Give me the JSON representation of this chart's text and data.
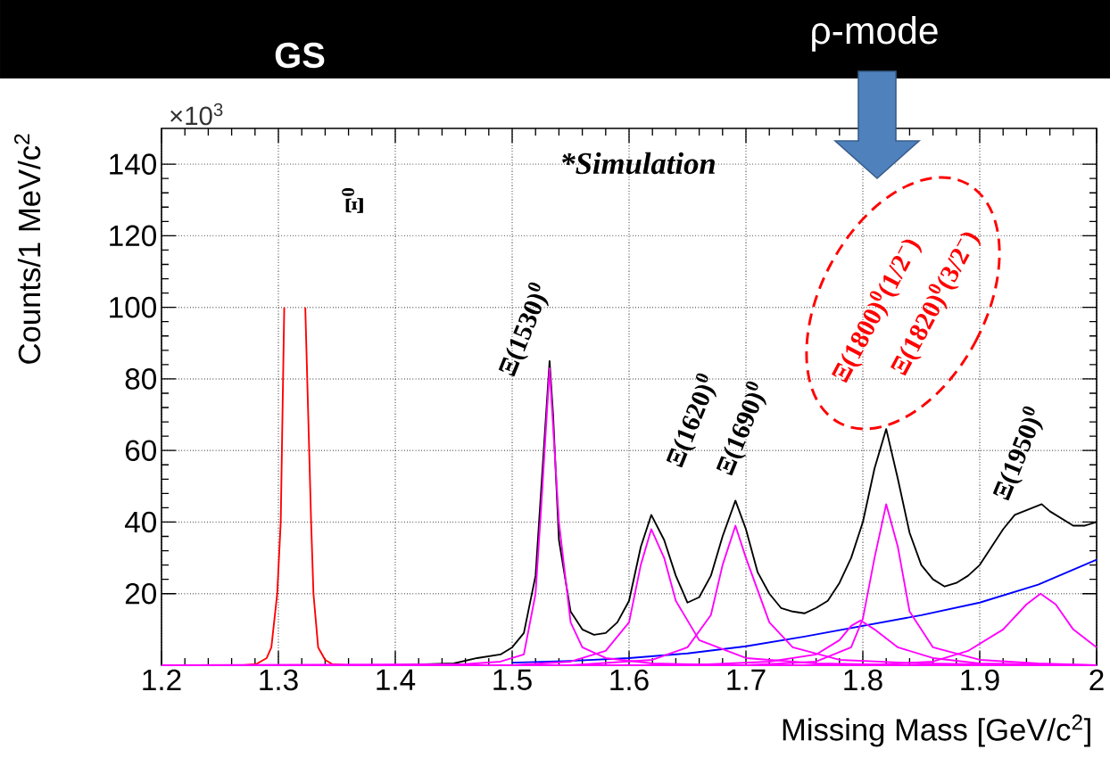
{
  "chart_data": {
    "type": "line",
    "xlabel": "Missing Mass [GeV/c$^{2}$]",
    "ylabel": "Counts/1 MeV/c$^{2}$",
    "xlim": [
      1.2,
      2.0
    ],
    "ylim": [
      0,
      150
    ],
    "xticks": [
      1.2,
      1.3,
      1.4,
      1.5,
      1.6,
      1.7,
      1.8,
      1.9,
      2
    ],
    "yticks": [
      20,
      40,
      60,
      80,
      100,
      120,
      140
    ],
    "grid": true,
    "series": [
      {
        "color": "#ff0000",
        "x": [
          1.2,
          1.27,
          1.281,
          1.29,
          1.294,
          1.299,
          1.302,
          1.305,
          1.308,
          1.321,
          1.323,
          1.328,
          1.33,
          1.334,
          1.34,
          1.346,
          1.36,
          1.4
        ],
        "values": [
          0,
          0,
          0.3,
          2,
          5,
          20,
          40,
          100,
          null,
          null,
          100,
          40,
          20,
          5,
          1.5,
          0.3,
          0,
          0
        ]
      },
      {
        "color": "#000000",
        "x": [
          1.2,
          1.4,
          1.45,
          1.47,
          1.49,
          1.5,
          1.51,
          1.52,
          1.525,
          1.532,
          1.535,
          1.54,
          1.55,
          1.56,
          1.57,
          1.58,
          1.59,
          1.6,
          1.61,
          1.619,
          1.63,
          1.64,
          1.65,
          1.66,
          1.67,
          1.68,
          1.691,
          1.7,
          1.71,
          1.72,
          1.73,
          1.74,
          1.75,
          1.76,
          1.77,
          1.78,
          1.79,
          1.8,
          1.81,
          1.82,
          1.83,
          1.84,
          1.85,
          1.86,
          1.87,
          1.88,
          1.89,
          1.9,
          1.91,
          1.92,
          1.93,
          1.953,
          1.96,
          1.97,
          1.98,
          1.99,
          2.0
        ],
        "values": [
          0,
          0,
          0.5,
          2,
          3,
          5,
          9,
          25,
          50,
          85,
          70,
          35,
          15,
          10,
          8.5,
          9,
          12,
          18,
          33,
          42,
          35,
          25,
          17.5,
          19,
          25,
          36,
          46,
          38,
          26,
          20,
          16,
          15,
          14.5,
          16,
          18,
          23,
          30,
          40,
          55,
          66,
          52,
          37,
          28,
          24,
          22,
          23,
          25,
          28,
          33,
          38,
          42,
          45,
          43,
          41,
          39,
          39,
          40
        ]
      },
      {
        "color": "#0000ff",
        "x": [
          1.2,
          1.4,
          1.45,
          1.5,
          1.55,
          1.6,
          1.65,
          1.7,
          1.75,
          1.8,
          1.85,
          1.9,
          1.95,
          2.0
        ],
        "values": [
          0,
          0,
          null,
          0.7,
          1.2,
          2,
          3.3,
          5.3,
          8,
          11,
          14,
          17.5,
          22.5,
          29.5
        ]
      },
      {
        "color": "#ff00ff",
        "x": [
          1.2,
          1.46,
          1.49,
          1.51,
          1.52,
          1.525,
          1.532,
          1.54,
          1.55,
          1.56,
          1.58,
          1.62,
          1.7,
          2.0
        ],
        "values": [
          0,
          0.3,
          1,
          3,
          20,
          45,
          83,
          40,
          12,
          5,
          2,
          0.5,
          0,
          0
        ]
      },
      {
        "color": "#ff00ff",
        "x": [
          1.2,
          1.5,
          1.55,
          1.58,
          1.6,
          1.61,
          1.619,
          1.63,
          1.64,
          1.66,
          1.7,
          1.76,
          1.85,
          2.0
        ],
        "values": [
          0,
          0,
          1,
          4,
          12,
          28,
          38,
          30,
          18,
          7,
          2,
          0.5,
          0,
          0
        ]
      },
      {
        "color": "#ff00ff",
        "x": [
          1.2,
          1.55,
          1.62,
          1.65,
          1.67,
          1.68,
          1.691,
          1.7,
          1.72,
          1.74,
          1.78,
          1.85,
          1.95,
          2.0
        ],
        "values": [
          0,
          0,
          1.5,
          5,
          14,
          28,
          39,
          30,
          12,
          5,
          1.5,
          0.5,
          0,
          0
        ]
      },
      {
        "color": "#ff00ff",
        "x": [
          1.2,
          1.65,
          1.72,
          1.76,
          1.78,
          1.79,
          1.798,
          1.81,
          1.83,
          1.86,
          1.9,
          2.0
        ],
        "values": [
          0,
          0,
          1,
          3,
          7,
          11,
          12.5,
          10,
          5,
          2,
          0.5,
          0
        ]
      },
      {
        "color": "#ff00ff",
        "x": [
          1.2,
          1.7,
          1.76,
          1.79,
          1.8,
          1.81,
          1.82,
          1.83,
          1.84,
          1.86,
          1.9,
          1.95,
          2.0
        ],
        "values": [
          0,
          0,
          1,
          5,
          13,
          30,
          45,
          33,
          15,
          5,
          1.5,
          0.5,
          0
        ]
      },
      {
        "color": "#ff00ff",
        "x": [
          1.2,
          1.8,
          1.86,
          1.89,
          1.92,
          1.94,
          1.952,
          1.965,
          1.98,
          2.0
        ],
        "values": [
          0,
          0,
          1,
          4,
          10,
          17,
          20,
          17,
          10,
          5
        ]
      }
    ],
    "annotations": [
      "GS",
      "ρ-mode",
      "×10$^{3}$",
      "*Simulation",
      "Ξ$^{0}$",
      "Ξ(1530)$^{0}$",
      "Ξ(1620)$^{0}$",
      "Ξ(1690)$^{0}$",
      "Ξ(1800)$^{0}$(1/2$^{−}$)",
      "Ξ(1820)$^{0}$(3/2$^{−}$)",
      "Ξ(1950)$^{0}$"
    ]
  }
}
